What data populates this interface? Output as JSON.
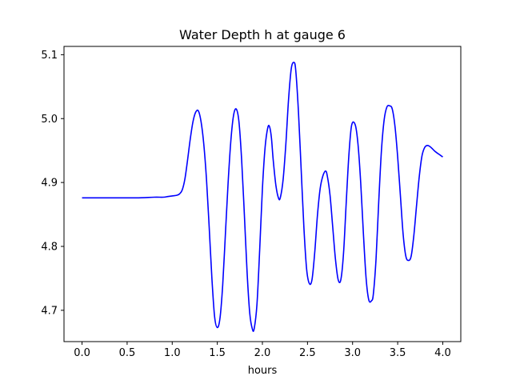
{
  "chart_data": {
    "type": "line",
    "title": "Water Depth h at gauge 6",
    "xlabel": "hours",
    "ylabel": "",
    "xlim": [
      -0.2,
      4.2
    ],
    "ylim": [
      4.651,
      5.113
    ],
    "xticks": [
      0.0,
      0.5,
      1.0,
      1.5,
      2.0,
      2.5,
      3.0,
      3.5,
      4.0
    ],
    "xtick_labels": [
      "0.0",
      "0.5",
      "1.0",
      "1.5",
      "2.0",
      "2.5",
      "3.0",
      "3.5",
      "4.0"
    ],
    "yticks": [
      4.7,
      4.8,
      4.9,
      5.0,
      5.1
    ],
    "ytick_labels": [
      "4.7",
      "4.8",
      "4.9",
      "5.0",
      "5.1"
    ],
    "grid": false,
    "series": [
      {
        "color": "#0000ff",
        "x": [
          0.0,
          0.3,
          0.6,
          0.8,
          0.9,
          0.95,
          1.0,
          1.05,
          1.08,
          1.11,
          1.14,
          1.17,
          1.2,
          1.23,
          1.26,
          1.29,
          1.32,
          1.35,
          1.38,
          1.41,
          1.44,
          1.47,
          1.5,
          1.53,
          1.56,
          1.59,
          1.62,
          1.65,
          1.68,
          1.71,
          1.74,
          1.77,
          1.8,
          1.83,
          1.86,
          1.89,
          1.91,
          1.94,
          1.97,
          2.0,
          2.03,
          2.06,
          2.08,
          2.1,
          2.12,
          2.15,
          2.18,
          2.2,
          2.23,
          2.26,
          2.29,
          2.32,
          2.35,
          2.37,
          2.4,
          2.43,
          2.46,
          2.49,
          2.52,
          2.55,
          2.58,
          2.61,
          2.64,
          2.67,
          2.7,
          2.72,
          2.75,
          2.78,
          2.81,
          2.84,
          2.87,
          2.9,
          2.93,
          2.96,
          2.99,
          3.03,
          3.06,
          3.09,
          3.12,
          3.15,
          3.18,
          3.21,
          3.23,
          3.26,
          3.29,
          3.32,
          3.35,
          3.38,
          3.41,
          3.44,
          3.47,
          3.5,
          3.53,
          3.56,
          3.59,
          3.62,
          3.65,
          3.68,
          3.71,
          3.74,
          3.77,
          3.8,
          3.83,
          3.86,
          3.89,
          3.92,
          3.95,
          3.98,
          4.0
        ],
        "y": [
          4.876,
          4.876,
          4.876,
          4.877,
          4.877,
          4.878,
          4.879,
          4.88,
          4.882,
          4.888,
          4.905,
          4.935,
          4.968,
          4.995,
          5.01,
          5.012,
          4.995,
          4.96,
          4.905,
          4.83,
          4.75,
          4.69,
          4.673,
          4.688,
          4.74,
          4.82,
          4.9,
          4.965,
          5.005,
          5.015,
          4.995,
          4.935,
          4.85,
          4.76,
          4.695,
          4.67,
          4.672,
          4.71,
          4.795,
          4.89,
          4.955,
          4.986,
          4.987,
          4.97,
          4.935,
          4.895,
          4.875,
          4.877,
          4.905,
          4.96,
          5.03,
          5.078,
          5.088,
          5.075,
          5.01,
          4.92,
          4.83,
          4.765,
          4.742,
          4.748,
          4.79,
          4.848,
          4.89,
          4.91,
          4.918,
          4.91,
          4.88,
          4.83,
          4.78,
          4.748,
          4.748,
          4.79,
          4.87,
          4.945,
          4.99,
          4.99,
          4.96,
          4.9,
          4.82,
          4.75,
          4.716,
          4.715,
          4.725,
          4.78,
          4.87,
          4.95,
          4.998,
          5.018,
          5.02,
          5.015,
          4.988,
          4.94,
          4.88,
          4.82,
          4.785,
          4.778,
          4.785,
          4.818,
          4.865,
          4.91,
          4.942,
          4.955,
          4.958,
          4.956,
          4.952,
          4.948,
          4.945,
          4.942,
          4.94
        ]
      }
    ]
  }
}
